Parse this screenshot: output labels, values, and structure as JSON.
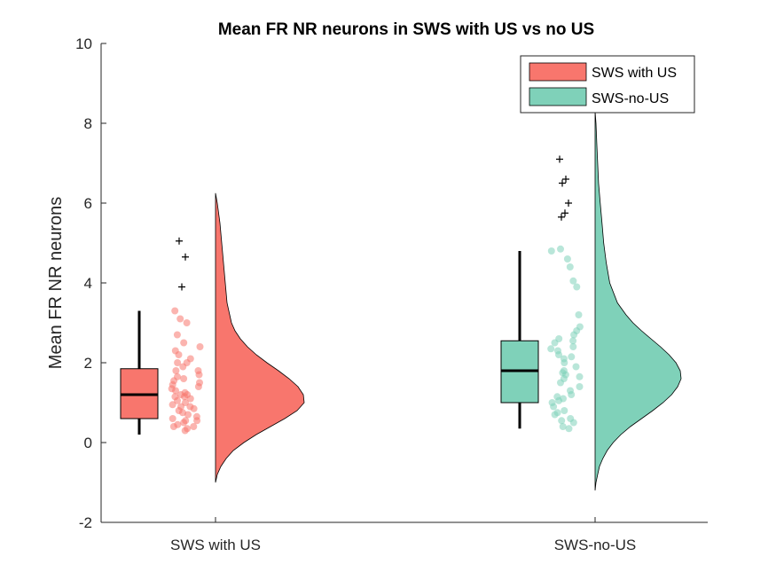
{
  "chart_data": {
    "type": "raincloud",
    "title": "Mean FR NR neurons in SWS with US vs no US",
    "xlabel": "",
    "ylabel": "Mean FR NR neurons",
    "ylim": [
      -2,
      10
    ],
    "yticks": [
      -2,
      0,
      2,
      4,
      6,
      8,
      10
    ],
    "categories": [
      "SWS with US",
      "SWS-no-US"
    ],
    "legend": {
      "position": "top-right"
    },
    "series": [
      {
        "name": "SWS with US",
        "color": "#F8766D",
        "box": {
          "whisker_low": 0.2,
          "q1": 0.6,
          "median": 1.2,
          "q3": 1.85,
          "whisker_high": 3.3
        },
        "outliers": [
          5.05,
          4.65,
          3.9
        ],
        "points": [
          0.3,
          0.35,
          0.4,
          0.45,
          0.5,
          0.55,
          0.6,
          0.65,
          0.7,
          0.75,
          0.8,
          0.85,
          0.9,
          0.95,
          1.0,
          1.05,
          1.1,
          1.15,
          1.2,
          1.25,
          1.3,
          1.35,
          1.4,
          1.5,
          1.55,
          1.6,
          1.7,
          1.8,
          1.9,
          2.0,
          2.1,
          2.2,
          2.3,
          2.4,
          2.5,
          2.7,
          3.0,
          3.1,
          3.3,
          0.4,
          0.9,
          1.2,
          1.45,
          1.8,
          2.0,
          0.55,
          1.15,
          1.65
        ],
        "density": {
          "y": [
            -1.0,
            -0.8,
            -0.6,
            -0.4,
            -0.2,
            0.0,
            0.2,
            0.4,
            0.6,
            0.8,
            1.0,
            1.2,
            1.4,
            1.6,
            1.8,
            2.0,
            2.2,
            2.4,
            2.6,
            2.8,
            3.0,
            3.5,
            4.0,
            4.5,
            5.0,
            5.5,
            6.0,
            6.25
          ],
          "value": [
            0.0,
            0.02,
            0.06,
            0.12,
            0.2,
            0.32,
            0.46,
            0.62,
            0.78,
            0.92,
            1.0,
            0.99,
            0.93,
            0.83,
            0.71,
            0.58,
            0.46,
            0.36,
            0.28,
            0.22,
            0.18,
            0.13,
            0.11,
            0.09,
            0.07,
            0.05,
            0.02,
            0.0
          ]
        }
      },
      {
        "name": "SWS-no-US",
        "color": "#7FD1B9",
        "box": {
          "whisker_low": 0.35,
          "q1": 1.0,
          "median": 1.8,
          "q3": 2.55,
          "whisker_high": 4.8
        },
        "outliers": [
          7.1,
          6.6,
          6.5,
          6.0,
          5.75,
          5.65
        ],
        "points": [
          0.35,
          0.4,
          0.5,
          0.6,
          0.7,
          0.75,
          0.8,
          0.9,
          1.0,
          1.1,
          1.2,
          1.3,
          1.4,
          1.5,
          1.6,
          1.7,
          1.8,
          1.9,
          2.0,
          2.1,
          2.2,
          2.3,
          2.4,
          2.5,
          2.6,
          2.7,
          2.8,
          2.9,
          3.2,
          3.9,
          4.05,
          4.4,
          4.6,
          4.8,
          4.85,
          0.55,
          1.15,
          1.75,
          2.15,
          2.55,
          1.05,
          1.65,
          2.35
        ],
        "density": {
          "y": [
            -1.2,
            -1.0,
            -0.8,
            -0.6,
            -0.4,
            -0.2,
            0.0,
            0.2,
            0.4,
            0.6,
            0.8,
            1.0,
            1.2,
            1.4,
            1.6,
            1.8,
            2.0,
            2.2,
            2.4,
            2.6,
            2.8,
            3.0,
            3.2,
            3.5,
            4.0,
            4.5,
            5.0,
            5.5,
            6.0,
            6.5,
            7.0,
            7.5,
            8.0,
            8.3
          ],
          "value": [
            0.0,
            0.01,
            0.03,
            0.05,
            0.09,
            0.14,
            0.21,
            0.3,
            0.41,
            0.54,
            0.67,
            0.79,
            0.89,
            0.96,
            1.0,
            0.99,
            0.94,
            0.86,
            0.76,
            0.65,
            0.54,
            0.44,
            0.36,
            0.26,
            0.17,
            0.13,
            0.1,
            0.08,
            0.06,
            0.04,
            0.03,
            0.02,
            0.01,
            0.0
          ]
        }
      }
    ]
  }
}
